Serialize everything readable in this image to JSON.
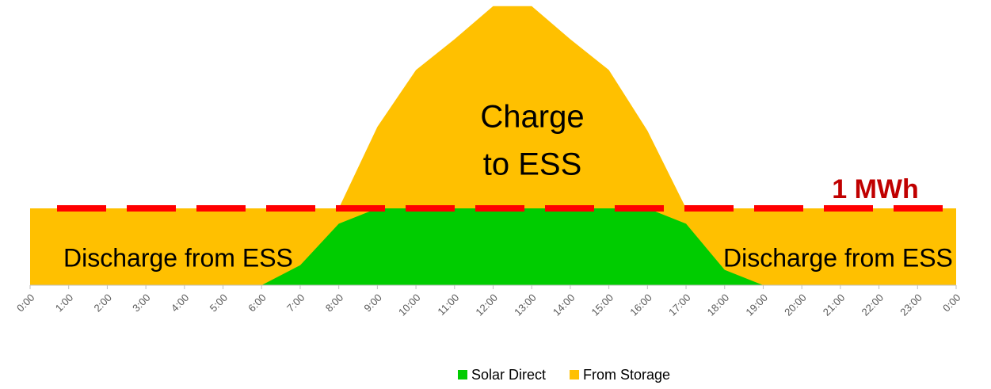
{
  "chart_data": {
    "type": "area",
    "categories": [
      "0:00",
      "1:00",
      "2:00",
      "3:00",
      "4:00",
      "5:00",
      "6:00",
      "7:00",
      "8:00",
      "9:00",
      "10:00",
      "11:00",
      "12:00",
      "13:00",
      "14:00",
      "15:00",
      "16:00",
      "17:00",
      "18:00",
      "19:00",
      "20:00",
      "21:00",
      "22:00",
      "23:00",
      "0:00"
    ],
    "series": [
      {
        "name": "From Storage",
        "color": "#ffc000",
        "values": [
          1,
          1,
          1,
          1,
          1,
          1,
          1,
          1,
          1,
          2.06,
          2.8,
          3.2,
          3.63,
          3.63,
          3.2,
          2.8,
          2.01,
          1,
          1,
          1,
          1,
          1,
          1,
          1,
          1
        ]
      },
      {
        "name": "Solar Direct",
        "color": "#00cc00",
        "values": [
          0,
          0,
          0,
          0,
          0,
          0,
          0,
          0.26,
          0.8,
          1,
          1,
          1,
          1,
          1,
          1,
          1,
          1,
          0.8,
          0.2,
          0,
          0,
          0,
          0,
          0,
          0
        ]
      }
    ],
    "legend_order": [
      1,
      0
    ],
    "reference_line": {
      "value": 1,
      "label": "1 MWh",
      "color": "#ff0000",
      "label_color": "#c00000"
    },
    "annotations": [
      "Charge",
      "to ESS",
      "Discharge from ESS",
      "Discharge from ESS"
    ],
    "ylim": [
      0,
      3.7
    ]
  }
}
